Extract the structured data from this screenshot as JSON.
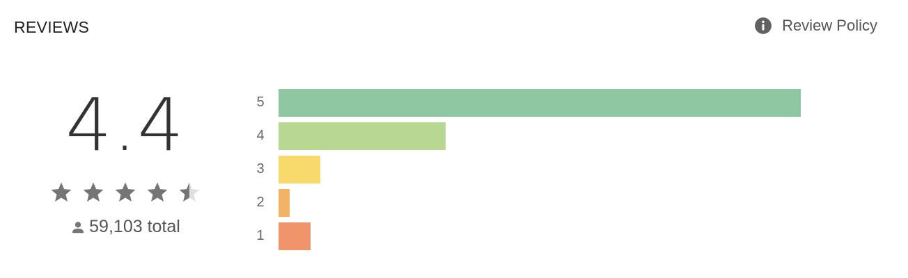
{
  "header": {
    "title": "REVIEWS",
    "policy_label": "Review Policy",
    "policy_icon": "info-icon"
  },
  "summary": {
    "score": "4.4",
    "rating": 4.4,
    "max_rating": 5,
    "total_text": "59,103 total",
    "person_icon": "person-icon",
    "star_color": "#757575",
    "star_empty_color": "#e0e0e0"
  },
  "histogram": {
    "rows": [
      {
        "stars": "5",
        "fraction": 1.0,
        "color": "#8dc6a1"
      },
      {
        "stars": "4",
        "fraction": 0.32,
        "color": "#b7d793"
      },
      {
        "stars": "3",
        "fraction": 0.08,
        "color": "#f8d96c"
      },
      {
        "stars": "2",
        "fraction": 0.021,
        "color": "#f2b366"
      },
      {
        "stars": "1",
        "fraction": 0.061,
        "color": "#f0946b"
      }
    ]
  }
}
